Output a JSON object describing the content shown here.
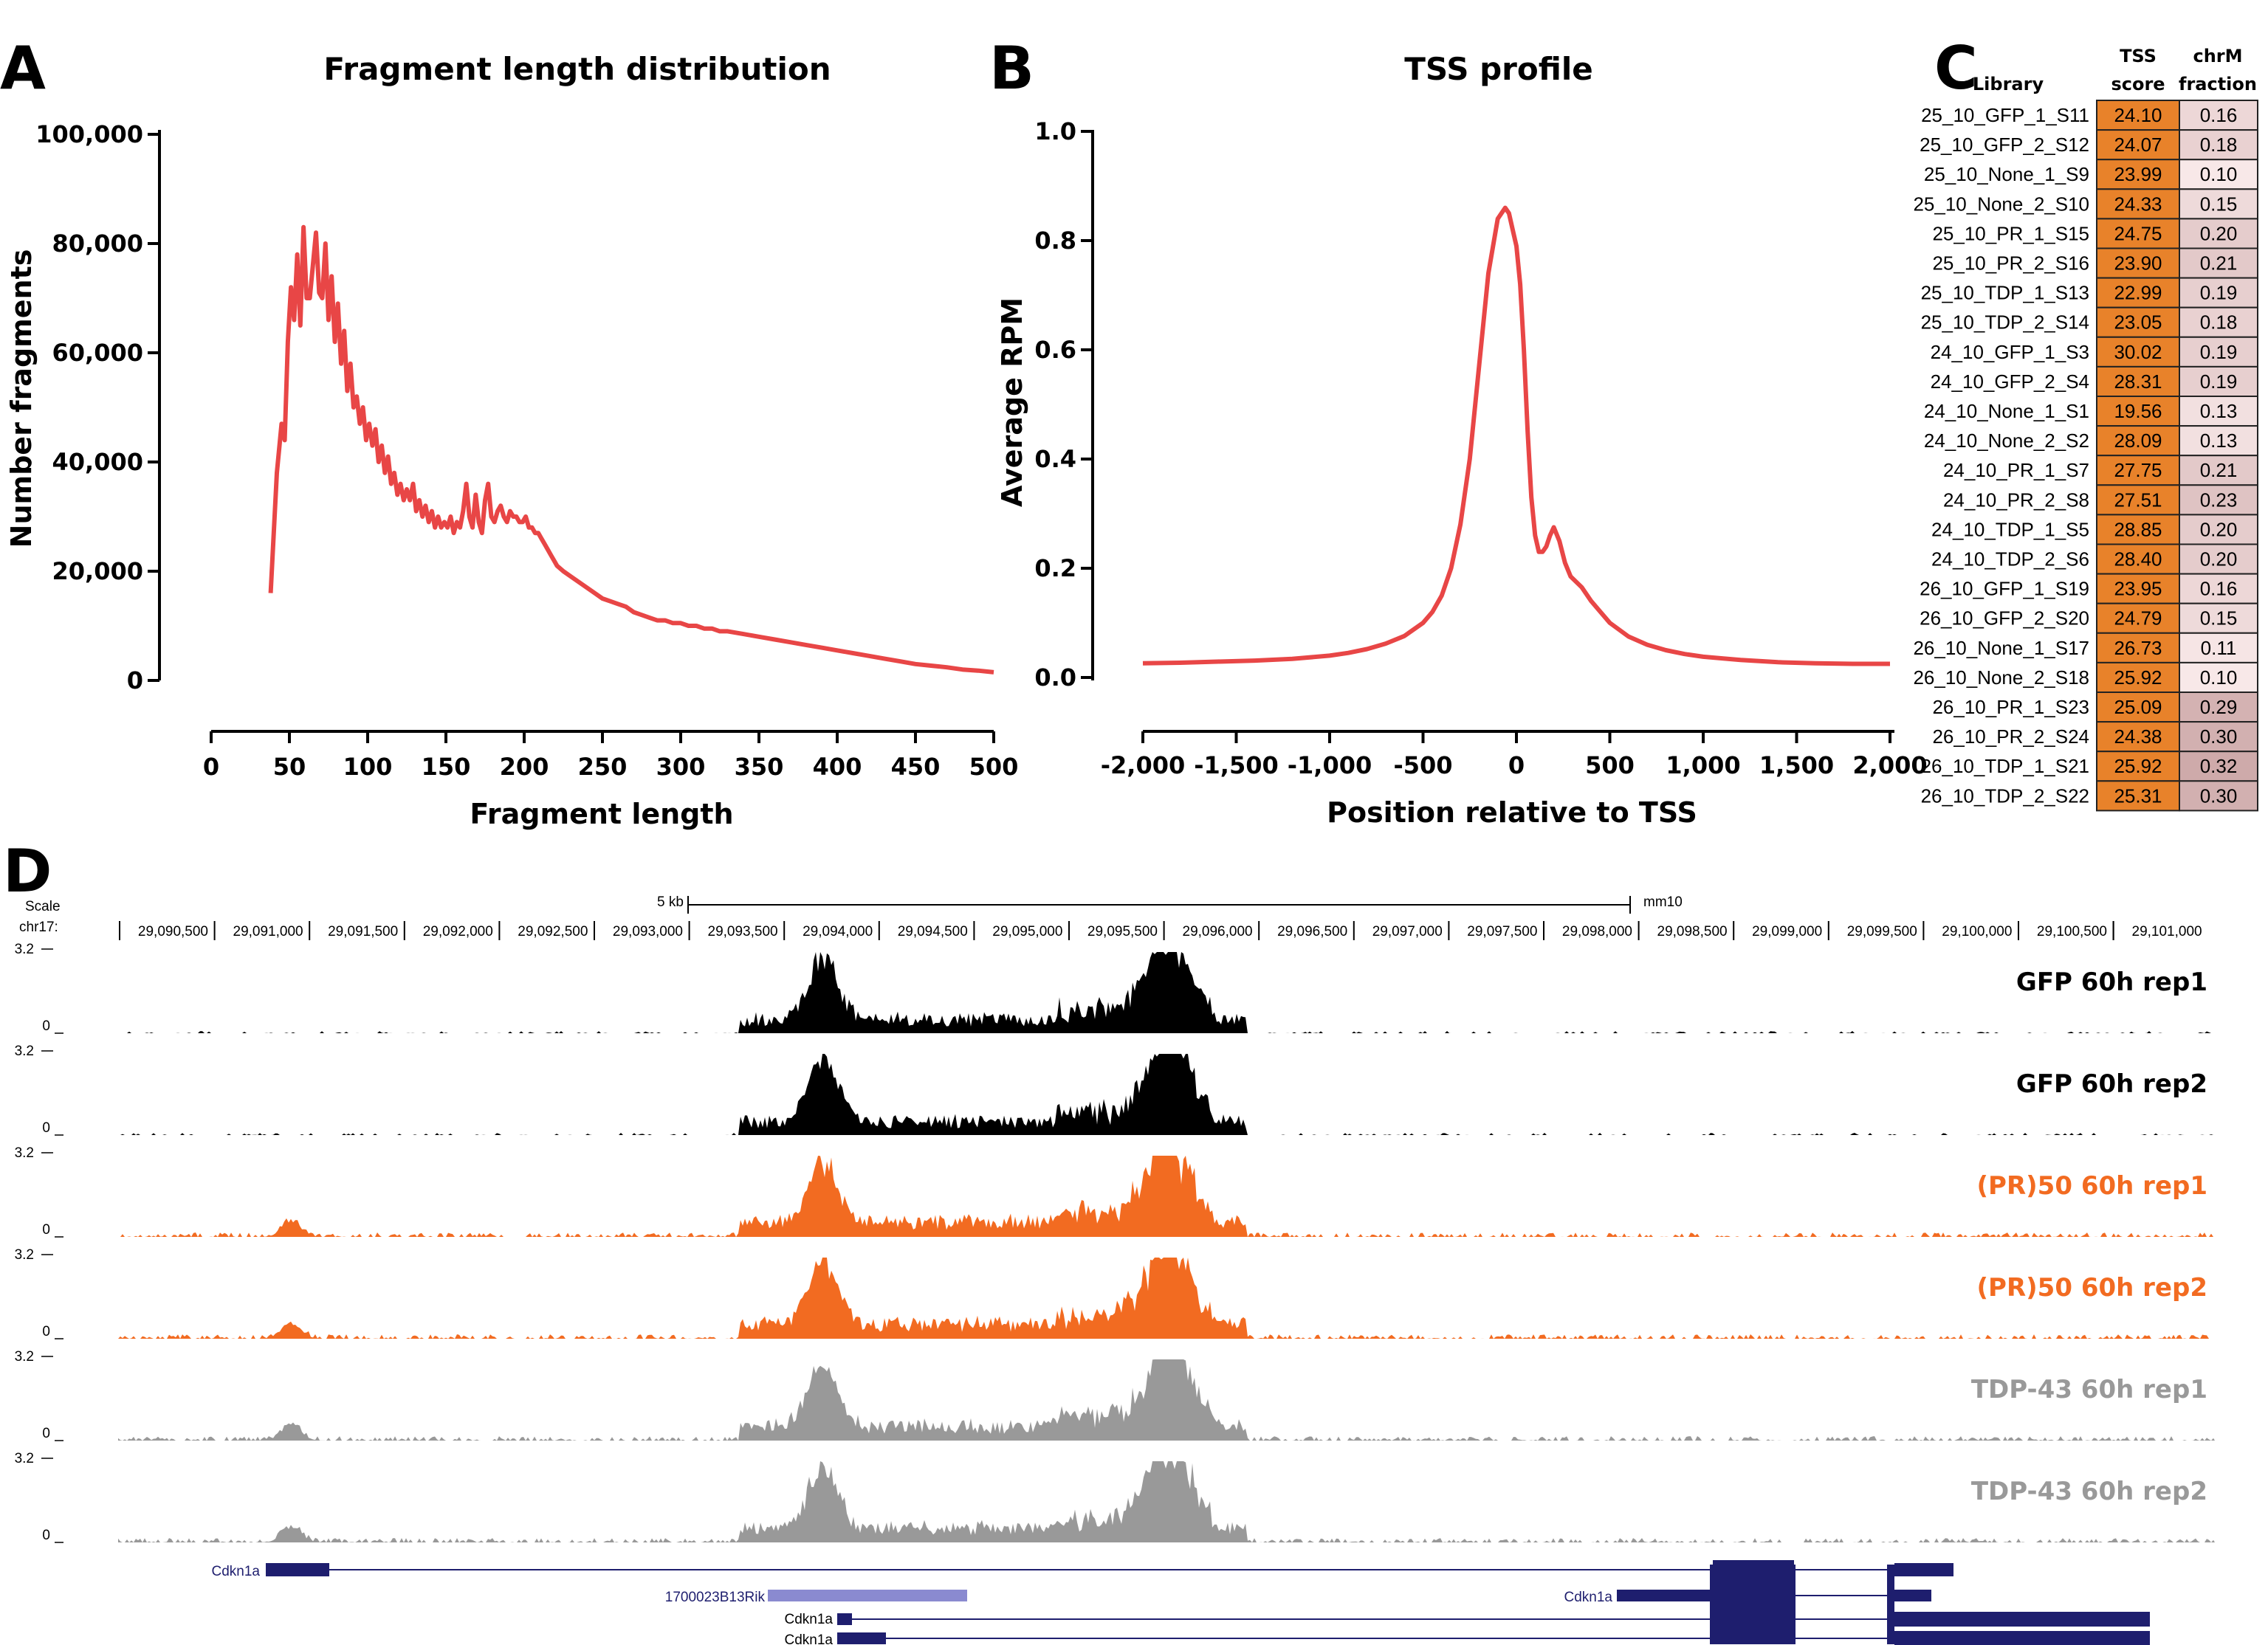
{
  "chart_data": [
    {
      "panel": "A",
      "type": "line",
      "title": "Fragment length distribution",
      "xlabel": "Fragment length",
      "ylabel": "Number fragments",
      "xlim": [
        0,
        500
      ],
      "ylim": [
        0,
        100000
      ],
      "xticks": [
        "0",
        "50",
        "100",
        "150",
        "200",
        "250",
        "300",
        "350",
        "400",
        "450",
        "500"
      ],
      "yticks": [
        "0",
        "20,000",
        "40,000",
        "60,000",
        "80,000",
        "100,000"
      ],
      "x": [
        38,
        42,
        45,
        47,
        49,
        51,
        53,
        55,
        57,
        59,
        61,
        63,
        65,
        67,
        69,
        71,
        73,
        75,
        77,
        79,
        81,
        83,
        85,
        87,
        89,
        91,
        93,
        95,
        97,
        99,
        101,
        103,
        105,
        107,
        109,
        111,
        113,
        115,
        117,
        119,
        121,
        123,
        125,
        127,
        129,
        131,
        133,
        135,
        137,
        139,
        141,
        143,
        145,
        147,
        149,
        151,
        153,
        155,
        157,
        159,
        161,
        163,
        165,
        167,
        169,
        171,
        173,
        175,
        177,
        179,
        181,
        183,
        185,
        187,
        189,
        191,
        193,
        195,
        197,
        199,
        201,
        203,
        205,
        207,
        209,
        211,
        213,
        215,
        217,
        219,
        221,
        225,
        230,
        235,
        240,
        245,
        250,
        255,
        260,
        265,
        270,
        275,
        280,
        285,
        290,
        295,
        300,
        305,
        310,
        315,
        320,
        325,
        330,
        340,
        350,
        360,
        370,
        380,
        390,
        400,
        410,
        420,
        430,
        440,
        450,
        460,
        470,
        480,
        490,
        500
      ],
      "values": [
        16000,
        38000,
        47000,
        44000,
        62000,
        72000,
        66000,
        78000,
        65000,
        83000,
        70000,
        70000,
        76000,
        82000,
        71000,
        70000,
        80000,
        66000,
        74000,
        62000,
        69000,
        58000,
        64000,
        53000,
        58000,
        50000,
        52000,
        47000,
        50000,
        44000,
        47000,
        43000,
        46000,
        40000,
        43000,
        38000,
        41000,
        36000,
        38000,
        34000,
        36000,
        33000,
        35000,
        33000,
        36000,
        31000,
        33000,
        30000,
        32000,
        29000,
        31000,
        28000,
        30000,
        28000,
        29000,
        28000,
        30000,
        27000,
        29000,
        28000,
        31000,
        36000,
        30000,
        28000,
        34000,
        29000,
        27000,
        33000,
        36000,
        30000,
        29000,
        31000,
        32000,
        30000,
        29000,
        31000,
        30000,
        30000,
        29000,
        29000,
        30000,
        28000,
        28000,
        27000,
        27000,
        26000,
        25000,
        24000,
        23000,
        22000,
        21000,
        20000,
        19000,
        18000,
        17000,
        16000,
        15000,
        14500,
        14000,
        13500,
        12500,
        12000,
        11500,
        11000,
        11000,
        10500,
        10500,
        10000,
        10000,
        9500,
        9500,
        9000,
        9000,
        8500,
        8000,
        7500,
        7000,
        6500,
        6000,
        5500,
        5000,
        4500,
        4000,
        3500,
        3000,
        2700,
        2400,
        2000,
        1800,
        1500
      ]
    },
    {
      "panel": "B",
      "type": "line",
      "title": "TSS profile",
      "xlabel": "Position relative to TSS",
      "ylabel": "Average RPM",
      "xlim": [
        -2000,
        2000
      ],
      "ylim": [
        0,
        1.0
      ],
      "xticks": [
        "-2,000",
        "-1,500",
        "-1,000",
        "-500",
        "0",
        "500",
        "1,000",
        "1,500",
        "2,000"
      ],
      "yticks": [
        "0.0",
        "0.2",
        "0.4",
        "0.6",
        "0.8",
        "1.0"
      ],
      "x": [
        -2000,
        -1800,
        -1600,
        -1400,
        -1200,
        -1000,
        -900,
        -800,
        -700,
        -600,
        -500,
        -450,
        -400,
        -350,
        -300,
        -250,
        -200,
        -150,
        -100,
        -60,
        -40,
        -20,
        0,
        20,
        40,
        60,
        80,
        100,
        120,
        140,
        160,
        180,
        200,
        230,
        260,
        290,
        320,
        350,
        400,
        450,
        500,
        600,
        700,
        800,
        900,
        1000,
        1200,
        1400,
        1600,
        1800,
        2000
      ],
      "values": [
        0.026,
        0.027,
        0.029,
        0.031,
        0.034,
        0.04,
        0.045,
        0.052,
        0.062,
        0.076,
        0.1,
        0.12,
        0.15,
        0.2,
        0.28,
        0.4,
        0.57,
        0.74,
        0.84,
        0.86,
        0.85,
        0.82,
        0.79,
        0.72,
        0.6,
        0.45,
        0.33,
        0.26,
        0.23,
        0.23,
        0.24,
        0.26,
        0.275,
        0.25,
        0.21,
        0.185,
        0.175,
        0.165,
        0.14,
        0.12,
        0.1,
        0.075,
        0.06,
        0.05,
        0.043,
        0.038,
        0.032,
        0.028,
        0.026,
        0.025,
        0.025
      ]
    },
    {
      "panel": "C",
      "type": "table",
      "columns": [
        "Library",
        "TSS score",
        "chrM fraction"
      ],
      "rows": [
        {
          "library": "25_10_GFP_1_S11",
          "tss": "24.10",
          "chrm": "0.16"
        },
        {
          "library": "25_10_GFP_2_S12",
          "tss": "24.07",
          "chrm": "0.18"
        },
        {
          "library": "25_10_None_1_S9",
          "tss": "23.99",
          "chrm": "0.10"
        },
        {
          "library": "25_10_None_2_S10",
          "tss": "24.33",
          "chrm": "0.15"
        },
        {
          "library": "25_10_PR_1_S15",
          "tss": "24.75",
          "chrm": "0.20"
        },
        {
          "library": "25_10_PR_2_S16",
          "tss": "23.90",
          "chrm": "0.21"
        },
        {
          "library": "25_10_TDP_1_S13",
          "tss": "22.99",
          "chrm": "0.19"
        },
        {
          "library": "25_10_TDP_2_S14",
          "tss": "23.05",
          "chrm": "0.18"
        },
        {
          "library": "24_10_GFP_1_S3",
          "tss": "30.02",
          "chrm": "0.19"
        },
        {
          "library": "24_10_GFP_2_S4",
          "tss": "28.31",
          "chrm": "0.19"
        },
        {
          "library": "24_10_None_1_S1",
          "tss": "19.56",
          "chrm": "0.13"
        },
        {
          "library": "24_10_None_2_S2",
          "tss": "28.09",
          "chrm": "0.13"
        },
        {
          "library": "24_10_PR_1_S7",
          "tss": "27.75",
          "chrm": "0.21"
        },
        {
          "library": "24_10_PR_2_S8",
          "tss": "27.51",
          "chrm": "0.23"
        },
        {
          "library": "24_10_TDP_1_S5",
          "tss": "28.85",
          "chrm": "0.20"
        },
        {
          "library": "24_10_TDP_2_S6",
          "tss": "28.40",
          "chrm": "0.20"
        },
        {
          "library": "26_10_GFP_1_S19",
          "tss": "23.95",
          "chrm": "0.16"
        },
        {
          "library": "26_10_GFP_2_S20",
          "tss": "24.79",
          "chrm": "0.15"
        },
        {
          "library": "26_10_None_1_S17",
          "tss": "26.73",
          "chrm": "0.11"
        },
        {
          "library": "26_10_None_2_S18",
          "tss": "25.92",
          "chrm": "0.10"
        },
        {
          "library": "26_10_PR_1_S23",
          "tss": "25.09",
          "chrm": "0.29"
        },
        {
          "library": "26_10_PR_2_S24",
          "tss": "24.38",
          "chrm": "0.30"
        },
        {
          "library": "26_10_TDP_1_S21",
          "tss": "25.92",
          "chrm": "0.32"
        },
        {
          "library": "26_10_TDP_2_S22",
          "tss": "25.31",
          "chrm": "0.30"
        }
      ]
    },
    {
      "panel": "D",
      "type": "area",
      "scale_label": "Scale",
      "chrom_label": "chr17:",
      "scale_bar_label": "5 kb",
      "assembly": "mm10",
      "coordinates": [
        "29,090,500",
        "29,091,000",
        "29,091,500",
        "29,092,000",
        "29,092,500",
        "29,093,000",
        "29,093,500",
        "29,094,000",
        "29,094,500",
        "29,095,000",
        "29,095,500",
        "29,096,000",
        "29,096,500",
        "29,097,000",
        "29,097,500",
        "29,098,000",
        "29,098,500",
        "29,099,000",
        "29,099,500",
        "29,100,000",
        "29,100,500",
        "29,101,000"
      ],
      "ymax_label": "3.2",
      "ymin_label": "0",
      "tracks": [
        {
          "name": "GFP 60h rep1",
          "color": "#000000"
        },
        {
          "name": "GFP 60h rep2",
          "color": "#000000"
        },
        {
          "name": "(PR)50 60h rep1",
          "color": "#F26B21"
        },
        {
          "name": "(PR)50 60h rep2",
          "color": "#F26B21"
        },
        {
          "name": "TDP-43 60h rep1",
          "color": "#999999"
        },
        {
          "name": "TDP-43 60h rep2",
          "color": "#999999"
        }
      ],
      "genes": [
        "Cdkn1a",
        "1700023B13Rik",
        "Cdkn1a",
        "Cdkn1a",
        "Cdkn1a"
      ]
    }
  ],
  "panel_letters": [
    "A",
    "B",
    "C",
    "D"
  ],
  "colors": {
    "line": "#E84646",
    "orange": "#E8822A",
    "pink": "#F2D8D8",
    "gene": "#1E1E6E",
    "rik": "#8A8AD0"
  }
}
